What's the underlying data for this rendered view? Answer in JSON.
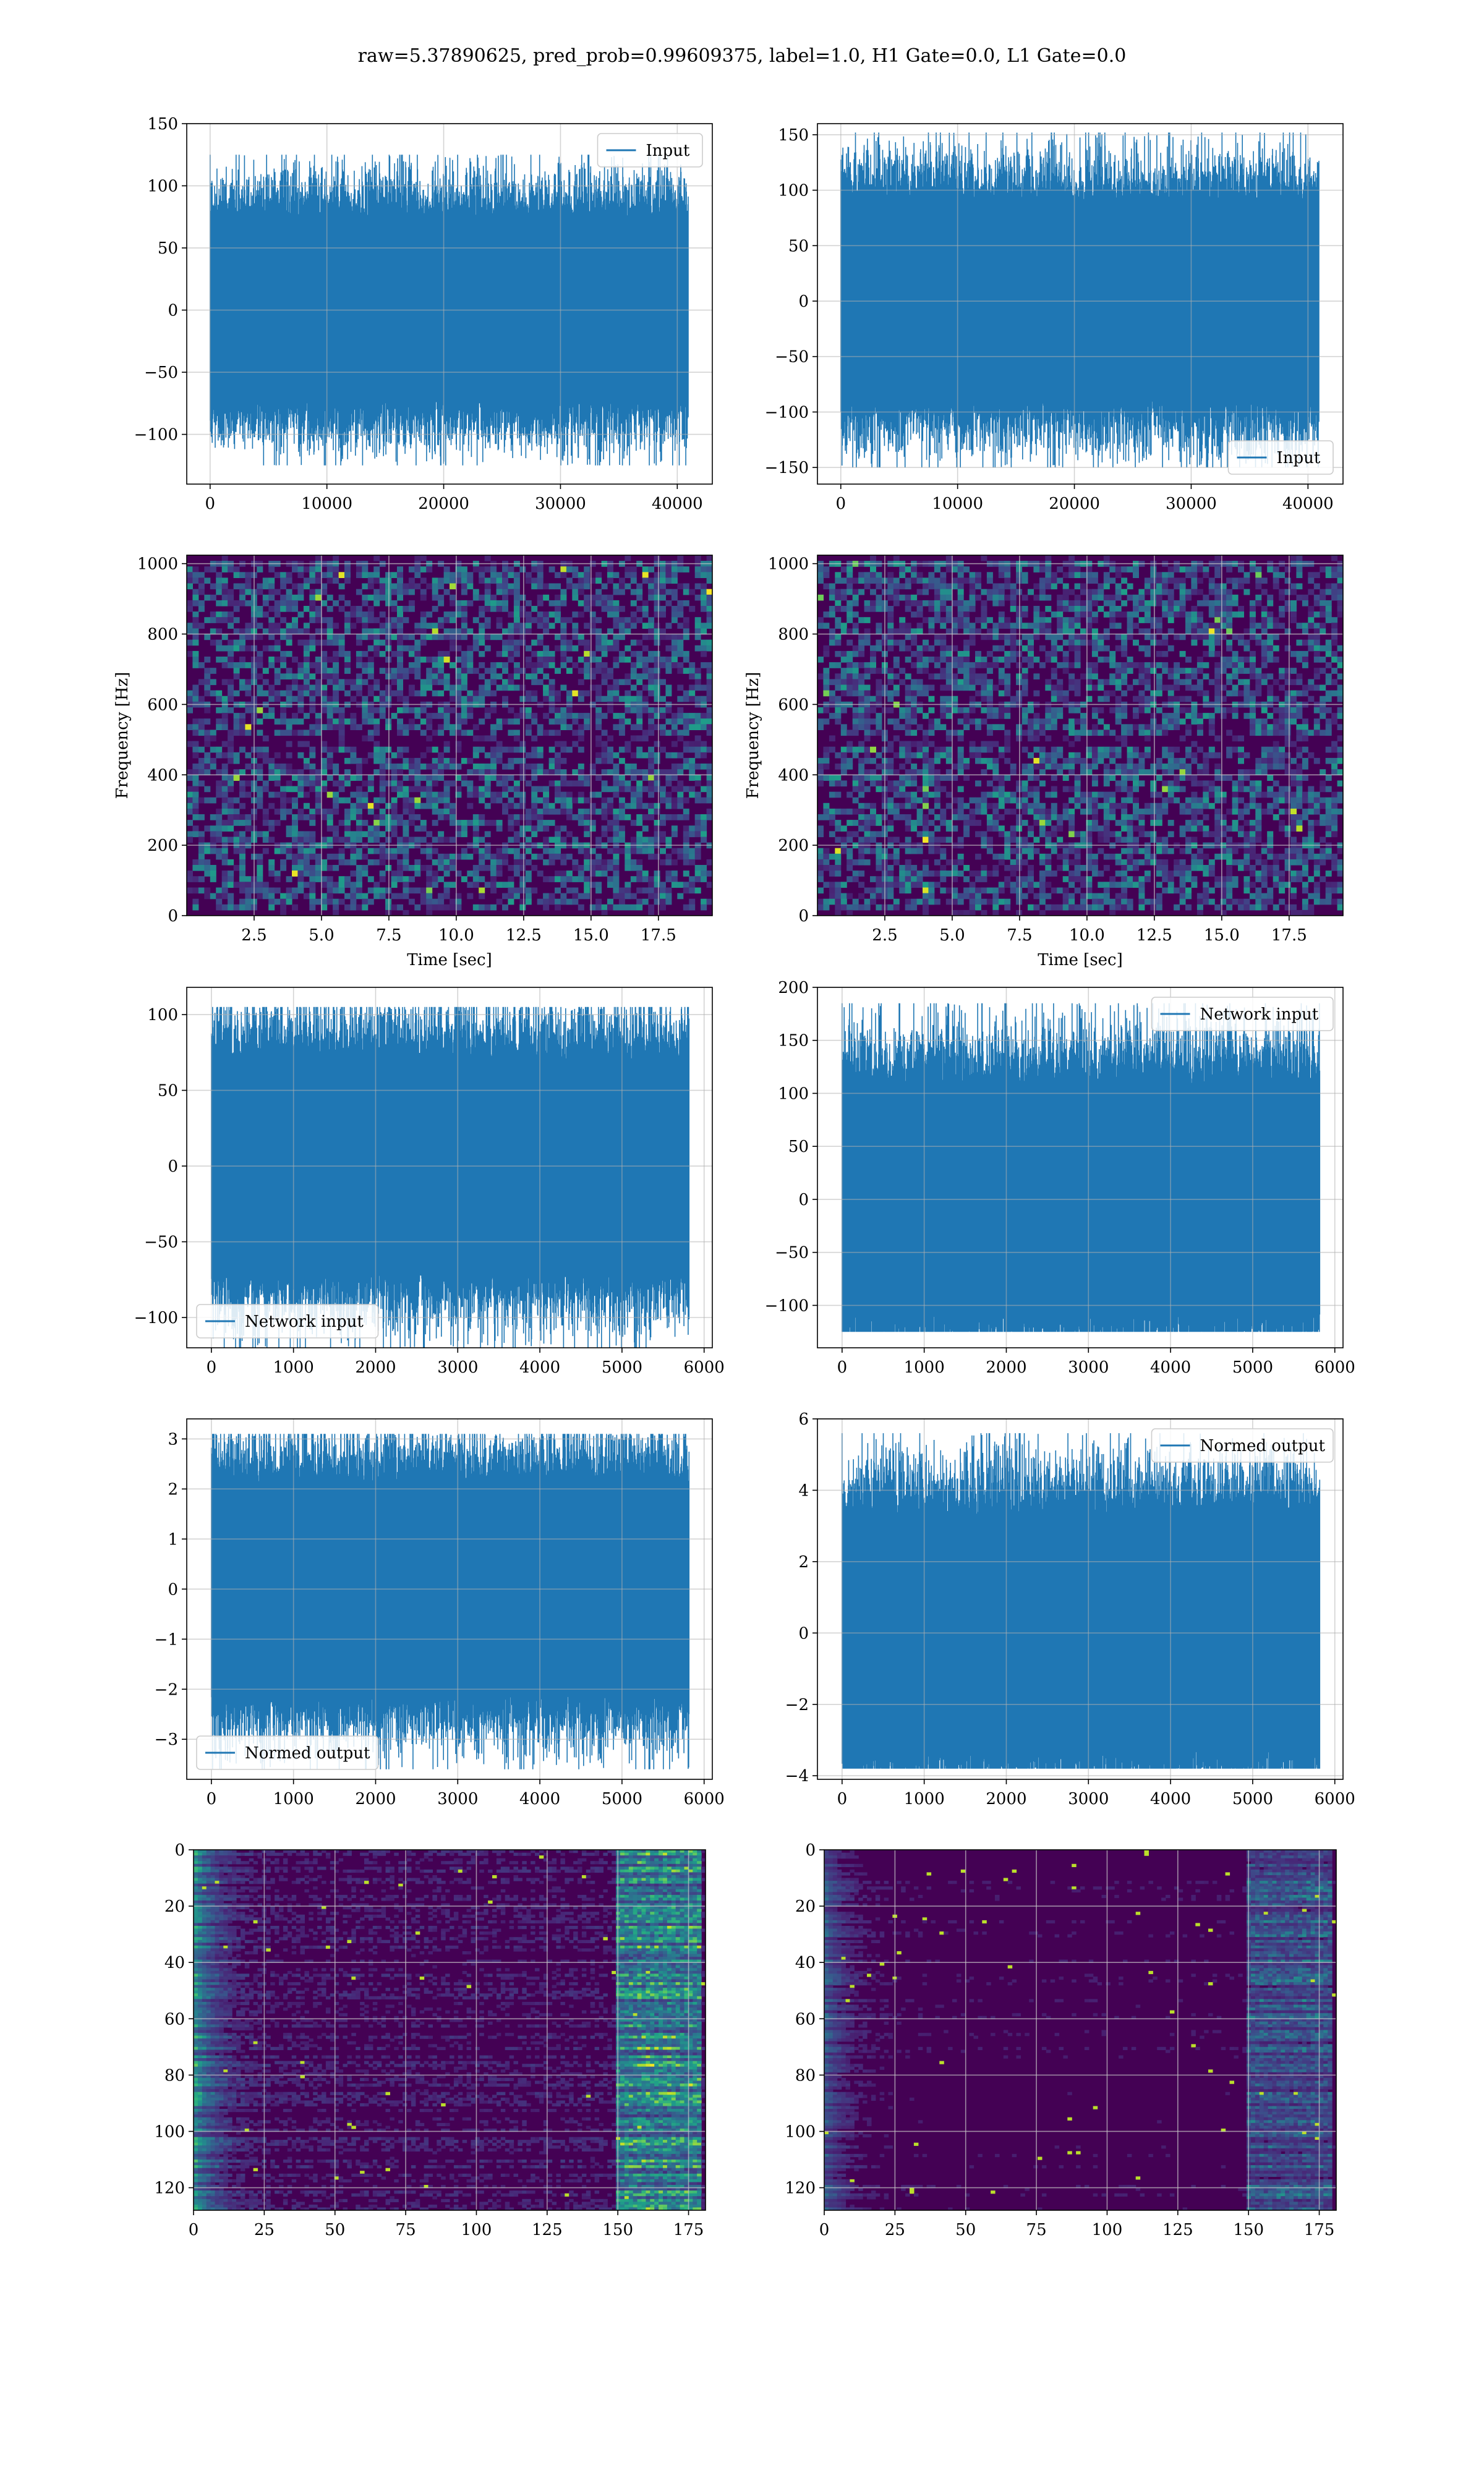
{
  "figure": {
    "suptitle": "raw=5.37890625, pred_prob=0.99609375, label=1.0, H1 Gate=0.0, L1 Gate=0.0"
  },
  "colors": {
    "series": "#1f77b4",
    "grid": "#b0b0b0",
    "viridis_low": "#440154",
    "viridis_mid": "#21918c",
    "viridis_high": "#fde725"
  },
  "chart_data": [
    {
      "id": "input-h1",
      "type": "line",
      "series": [
        {
          "name": "Input",
          "n_points": 40960,
          "amplitude_range": [
            -125,
            125
          ]
        }
      ],
      "legend": "top-right",
      "xlim": [
        -2000,
        43000
      ],
      "ylim": [
        -140,
        150
      ],
      "xticks": [
        0,
        10000,
        20000,
        30000,
        40000
      ],
      "yticks": [
        -100,
        -50,
        0,
        50,
        100,
        150
      ],
      "xlabel": "",
      "ylabel": "",
      "grid": true
    },
    {
      "id": "input-l1",
      "type": "line",
      "series": [
        {
          "name": "Input",
          "n_points": 40960,
          "amplitude_range": [
            -150,
            152
          ]
        }
      ],
      "legend": "bottom-right",
      "xlim": [
        -2000,
        43000
      ],
      "ylim": [
        -165,
        160
      ],
      "xticks": [
        0,
        10000,
        20000,
        30000,
        40000
      ],
      "yticks": [
        -150,
        -100,
        -50,
        0,
        50,
        100,
        150
      ],
      "xlabel": "",
      "ylabel": "",
      "grid": true
    },
    {
      "id": "spectrogram-h1",
      "type": "heatmap",
      "xlim": [
        0,
        19.5
      ],
      "ylim": [
        0,
        1024
      ],
      "xticks": [
        2.5,
        5.0,
        7.5,
        10.0,
        12.5,
        15.0,
        17.5
      ],
      "yticks": [
        0,
        200,
        400,
        600,
        800,
        1000
      ],
      "xticklabels": [
        "2.5",
        "5.0",
        "7.5",
        "10.0",
        "12.5",
        "15.0",
        "17.5"
      ],
      "xlabel": "Time [sec]",
      "ylabel": "Frequency [Hz]",
      "grid": true,
      "colormap": "viridis"
    },
    {
      "id": "spectrogram-l1",
      "type": "heatmap",
      "xlim": [
        0,
        19.5
      ],
      "ylim": [
        0,
        1024
      ],
      "xticks": [
        2.5,
        5.0,
        7.5,
        10.0,
        12.5,
        15.0,
        17.5
      ],
      "yticks": [
        0,
        200,
        400,
        600,
        800,
        1000
      ],
      "xticklabels": [
        "2.5",
        "5.0",
        "7.5",
        "10.0",
        "12.5",
        "15.0",
        "17.5"
      ],
      "xlabel": "Time [sec]",
      "ylabel": "Frequency [Hz]",
      "grid": true,
      "colormap": "viridis"
    },
    {
      "id": "network-input-h1",
      "type": "line",
      "series": [
        {
          "name": "Network input",
          "n_points": 5820,
          "amplitude_range": [
            -120,
            105
          ]
        }
      ],
      "legend": "bottom-left",
      "xlim": [
        -300,
        6100
      ],
      "ylim": [
        -120,
        118
      ],
      "xticks": [
        0,
        1000,
        2000,
        3000,
        4000,
        5000,
        6000
      ],
      "yticks": [
        -100,
        -50,
        0,
        50,
        100
      ],
      "xlabel": "",
      "ylabel": "",
      "grid": true
    },
    {
      "id": "network-input-l1",
      "type": "line",
      "series": [
        {
          "name": "Network input",
          "n_points": 5820,
          "amplitude_range": [
            -125,
            185
          ]
        }
      ],
      "legend": "top-right",
      "xlim": [
        -300,
        6100
      ],
      "ylim": [
        -140,
        200
      ],
      "xticks": [
        0,
        1000,
        2000,
        3000,
        4000,
        5000,
        6000
      ],
      "yticks": [
        -100,
        -50,
        0,
        50,
        100,
        150,
        200
      ],
      "xlabel": "",
      "ylabel": "",
      "grid": true
    },
    {
      "id": "normed-output-h1",
      "type": "line",
      "series": [
        {
          "name": "Normed output",
          "n_points": 5820,
          "amplitude_range": [
            -3.6,
            3.1
          ]
        }
      ],
      "legend": "bottom-left",
      "xlim": [
        -300,
        6100
      ],
      "ylim": [
        -3.8,
        3.4
      ],
      "xticks": [
        0,
        1000,
        2000,
        3000,
        4000,
        5000,
        6000
      ],
      "yticks": [
        -3,
        -2,
        -1,
        0,
        1,
        2,
        3
      ],
      "xlabel": "",
      "ylabel": "",
      "grid": true
    },
    {
      "id": "normed-output-l1",
      "type": "line",
      "series": [
        {
          "name": "Normed output",
          "n_points": 5820,
          "amplitude_range": [
            -3.8,
            5.6
          ]
        }
      ],
      "legend": "top-right",
      "xlim": [
        -300,
        6100
      ],
      "ylim": [
        -4.1,
        6.0
      ],
      "xticks": [
        0,
        1000,
        2000,
        3000,
        4000,
        5000,
        6000
      ],
      "yticks": [
        -4,
        -2,
        0,
        2,
        4,
        6
      ],
      "xlabel": "",
      "ylabel": "",
      "grid": true
    },
    {
      "id": "feature-map-h1",
      "type": "heatmap",
      "xlim": [
        0,
        181
      ],
      "ylim": [
        128,
        0
      ],
      "xticks": [
        0,
        25,
        50,
        75,
        100,
        125,
        150,
        175
      ],
      "yticks": [
        0,
        20,
        40,
        60,
        80,
        100,
        120
      ],
      "xlabel": "",
      "ylabel": "",
      "grid": true,
      "colormap": "viridis"
    },
    {
      "id": "feature-map-l1",
      "type": "heatmap",
      "xlim": [
        0,
        181
      ],
      "ylim": [
        128,
        0
      ],
      "xticks": [
        0,
        25,
        50,
        75,
        100,
        125,
        150,
        175
      ],
      "yticks": [
        0,
        20,
        40,
        60,
        80,
        100,
        120
      ],
      "xlabel": "",
      "ylabel": "",
      "grid": true,
      "colormap": "viridis"
    }
  ]
}
